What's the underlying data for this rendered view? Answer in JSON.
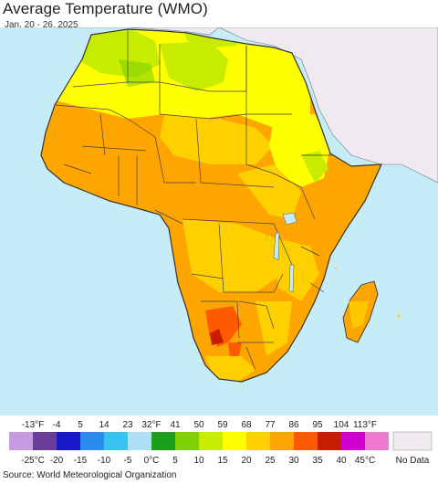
{
  "title": "Average Temperature (WMO)",
  "date_range": "Jan. 20 - 26, 2025",
  "source": "Source: World Meteorological Organization",
  "legend": {
    "fahrenheit_labels": [
      "-13°F",
      "-4",
      "5",
      "14",
      "23",
      "32°F",
      "41",
      "50",
      "59",
      "68",
      "77",
      "86",
      "95",
      "104",
      "113°F"
    ],
    "celsius_labels": [
      "-25°C",
      "-20",
      "-15",
      "-10",
      "-5",
      "0°C",
      "5",
      "10",
      "15",
      "20",
      "25",
      "30",
      "35",
      "40",
      "45°C"
    ],
    "colors": [
      "#c79be0",
      "#6a3d9a",
      "#1a1ac8",
      "#2b8cf0",
      "#37c2f2",
      "#aee0f5",
      "#1e9e1e",
      "#7fd000",
      "#c8ec00",
      "#ffff00",
      "#ffd000",
      "#ffa500",
      "#ff5a00",
      "#c81e00",
      "#d000d0",
      "#f07ad0"
    ],
    "no_data_label": "No Data",
    "no_data_color": "#efeaef"
  },
  "map": {
    "ocean_color": "#c6ecf8",
    "non_africa_land_color": "#efeaf0",
    "border_color": "#4a4a4a"
  }
}
